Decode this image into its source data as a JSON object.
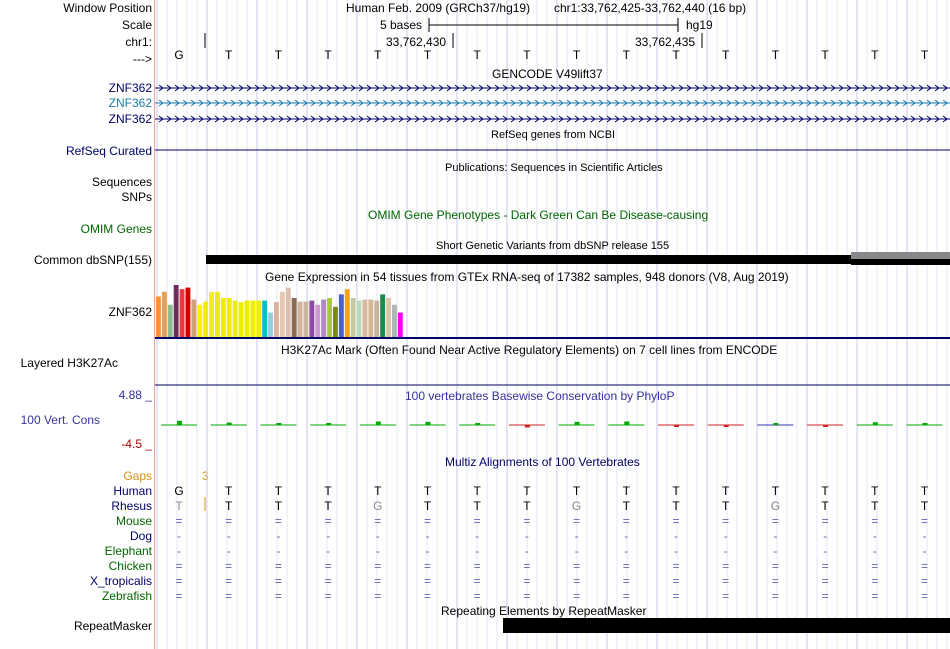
{
  "labels": {
    "window_position": "Window Position",
    "scale": "Scale",
    "chrom": "chr1:",
    "strand": "--->",
    "gencode_rows": [
      "ZNF362",
      "ZNF362",
      "ZNF362"
    ],
    "refseq": "RefSeq Curated",
    "sequences": "Sequences",
    "snps": "SNPs",
    "omim": "OMIM Genes",
    "dbsnp": "Common dbSNP(155)",
    "gtex_gene": "ZNF362",
    "h3k27ac": "Layered H3K27Ac",
    "cons_max": "4.88 _",
    "cons_label": "100 Vert. Cons",
    "cons_min": "-4.5 _",
    "gaps": "Gaps",
    "gaps_value": "3",
    "species": [
      "Human",
      "Rhesus",
      "Mouse",
      "Dog",
      "Elephant",
      "Chicken",
      "X_tropicalis",
      "Zebrafish"
    ],
    "repeatmasker": "RepeatMasker"
  },
  "header": {
    "assembly": "Human Feb. 2009 (GRCh37/hg19)",
    "position": "chr1:33,762,425-33,762,440 (16 bp)",
    "scale_text": "5 bases",
    "scale_db": "hg19",
    "coord_1": "33,762,430",
    "coord_2": "33,762,435"
  },
  "bases": [
    "G",
    "T",
    "T",
    "T",
    "T",
    "T",
    "T",
    "T",
    "T",
    "T",
    "T",
    "T",
    "T",
    "T",
    "T",
    "T"
  ],
  "tracks": {
    "gencode": "GENCODE V49lift37",
    "refseq": "RefSeq genes from NCBI",
    "publications": "Publications: Sequences in Scientific Articles",
    "omim": "OMIM Gene Phenotypes - Dark Green Can Be Disease-causing",
    "dbsnp": "Short Genetic Variants from dbSNP release 155",
    "gtex": "Gene Expression in 54 tissues from GTEx RNA-seq of 17382 samples, 948 donors (V8, Aug 2019)",
    "h3k27ac": "H3K27Ac Mark (Often Found Near Active Regulatory Elements) on 7 cell lines from ENCODE",
    "phylop": "100 vertebrates Basewise Conservation by PhyloP",
    "multiz": "Multiz Alignments of 100 Vertebrates",
    "repeatmasker": "Repeating Elements by RepeatMasker"
  },
  "alignment": {
    "Human": [
      "G",
      "T",
      "T",
      "T",
      "T",
      "T",
      "T",
      "T",
      "T",
      "T",
      "T",
      "T",
      "T",
      "T",
      "T",
      "T"
    ],
    "Rhesus": [
      "T",
      "T",
      "T",
      "T",
      "G",
      "T",
      "T",
      "T",
      "G",
      "T",
      "T",
      "T",
      "G",
      "T",
      "T",
      "T"
    ],
    "Mouse": [
      "=",
      "=",
      "=",
      "=",
      "=",
      "=",
      "=",
      "=",
      "=",
      "=",
      "=",
      "=",
      "=",
      "=",
      "=",
      "="
    ],
    "Dog": [
      "-",
      "-",
      "-",
      "-",
      "-",
      "-",
      "-",
      "-",
      "-",
      "-",
      "-",
      "-",
      "-",
      "-",
      "-",
      "-"
    ],
    "Elephant": [
      "-",
      "-",
      "-",
      "-",
      "-",
      "-",
      "-",
      "-",
      "-",
      "-",
      "-",
      "-",
      "-",
      "-",
      "-",
      "-"
    ],
    "Chicken": [
      "=",
      "=",
      "=",
      "=",
      "=",
      "=",
      "=",
      "=",
      "=",
      "=",
      "=",
      "=",
      "=",
      "=",
      "=",
      "="
    ],
    "X_tropicalis": [
      "=",
      "=",
      "=",
      "=",
      "=",
      "=",
      "=",
      "=",
      "=",
      "=",
      "=",
      "=",
      "=",
      "=",
      "=",
      "="
    ],
    "Zebrafish": [
      "=",
      "=",
      "=",
      "=",
      "=",
      "=",
      "=",
      "=",
      "=",
      "=",
      "=",
      "=",
      "=",
      "=",
      "=",
      "="
    ]
  },
  "colors": {
    "navy": "#000066",
    "teal": "#1b7aa8",
    "omim_green": "#006600",
    "gap_orange": "#d9900f",
    "grid": "#dcdcf4",
    "divider": "#e8a0a0"
  },
  "gtex_colors": [
    "#f29447",
    "#e3a15a",
    "#8fbc8f",
    "#6b2d5c",
    "#e8383d",
    "#d40000",
    "#cfa07a",
    "#fff200",
    "#eeee00",
    "#f2ee1c",
    "#ecea1c",
    "#eeee00",
    "#eeee00",
    "#eaea22",
    "#eeee00",
    "#eeee00",
    "#eeee00",
    "#eeee00",
    "#00c2c2",
    "#a6c3e0",
    "#d8b4a0",
    "#e6c7b0",
    "#dbbfae",
    "#8c6b4f",
    "#d2b49c",
    "#c9b79c",
    "#8a4ba5",
    "#cd9ad0",
    "#b088c8",
    "#a9c93b",
    "#7a8a1a",
    "#4a5fd0",
    "#f2a31a",
    "#c8c8a0",
    "#bcd8ba",
    "#d8b8a0",
    "#d4b896",
    "#c8b4a0",
    "#1f8a4b",
    "#d8c8a8",
    "#b4b4b4",
    "#ff00ff"
  ],
  "gtex_values": [
    0.78,
    0.87,
    0.62,
    1.0,
    0.92,
    0.95,
    0.72,
    0.62,
    0.68,
    0.87,
    0.87,
    0.75,
    0.75,
    0.7,
    0.67,
    0.7,
    0.7,
    0.7,
    0.7,
    0.47,
    0.67,
    0.87,
    0.95,
    0.75,
    0.68,
    0.68,
    0.7,
    0.62,
    0.72,
    0.75,
    0.58,
    0.82,
    0.92,
    0.75,
    0.7,
    0.72,
    0.72,
    0.7,
    0.82,
    0.75,
    0.62,
    0.47
  ]
}
